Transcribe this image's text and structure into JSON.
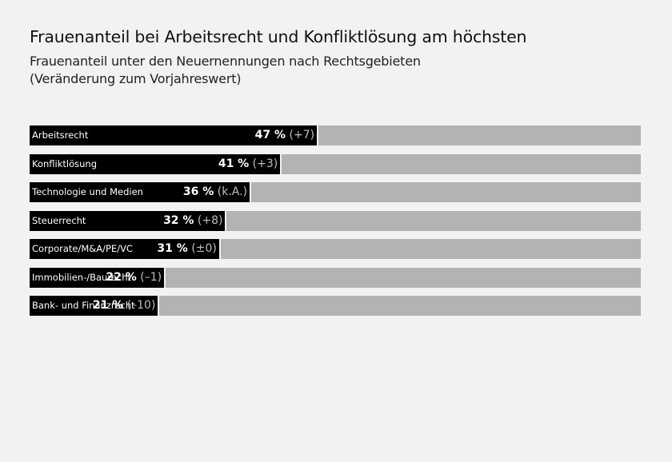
{
  "chart_data": {
    "type": "bar",
    "orientation": "horizontal",
    "title": "Frauenanteil bei Arbeitsrecht und Konfliktlösung am höchsten",
    "subtitle_lines": [
      "Frauenanteil unter den Neuernennungen nach Rechtsgebieten",
      "(Veränderung zum Vorjahreswert)"
    ],
    "xlabel": "",
    "ylabel": "",
    "xlim": [
      0,
      100
    ],
    "unit": "%",
    "grid": false,
    "legend": "none",
    "colors": {
      "fill": "#000000",
      "track": "#b3b3b3",
      "background": "#f2f2f2"
    },
    "categories": [
      "Arbeitsrecht",
      "Konfliktlösung",
      "Technologie und Medien",
      "Steuerrecht",
      "Corporate/M&A/PE/VC",
      "Immobilien-/Baurecht",
      "Bank- und Finanzrecht"
    ],
    "values": [
      47,
      41,
      36,
      32,
      31,
      22,
      21
    ],
    "value_labels": [
      "47 %",
      "41 %",
      "36 %",
      "32 %",
      "31 %",
      "22 %",
      "21 %"
    ],
    "change_labels": [
      "(+7)",
      "(+3)",
      "(k.A.)",
      "(+8)",
      "(±0)",
      "(–1)",
      "(–10)"
    ]
  }
}
